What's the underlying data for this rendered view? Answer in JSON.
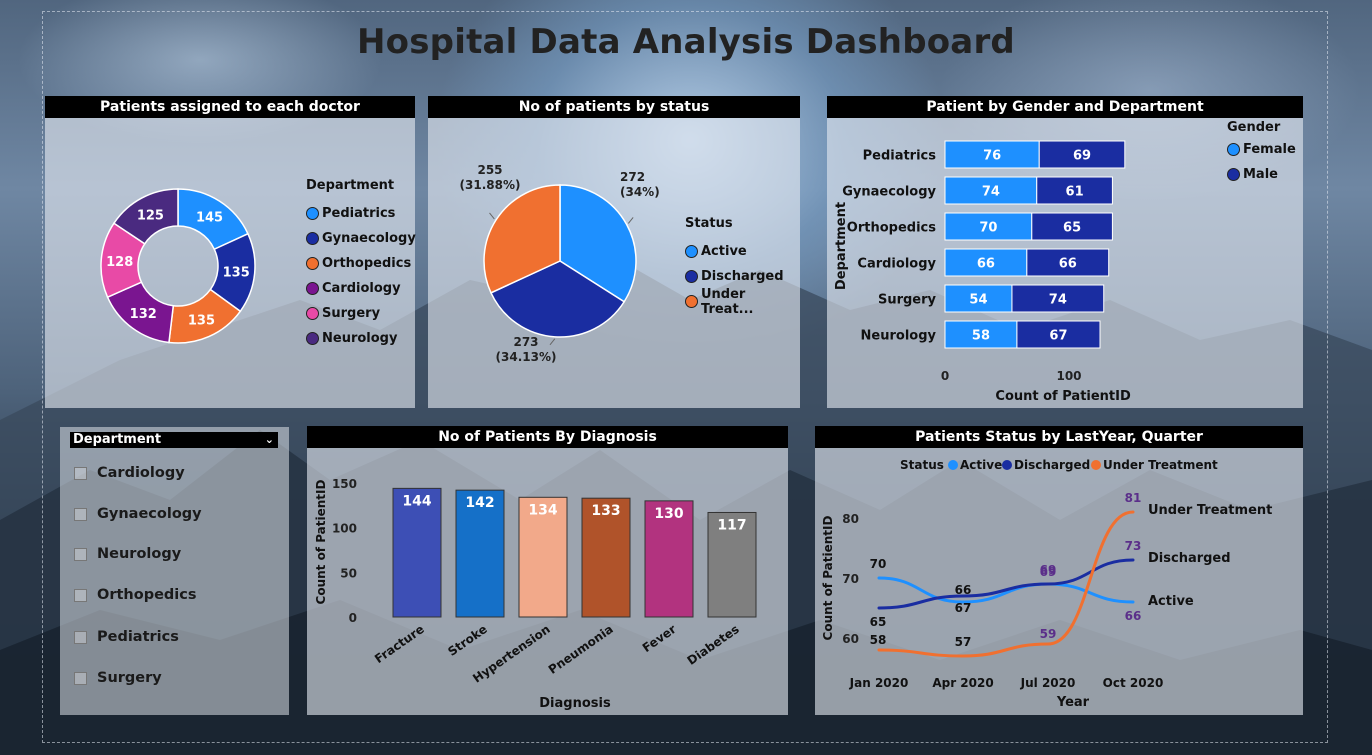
{
  "title": "Hospital Data Analysis Dashboard",
  "colors": {
    "pediatrics": "#1e90ff",
    "gynaecology": "#1a2da1",
    "orthopedics": "#f07030",
    "cardiology": "#7a1590",
    "surgery": "#e84aa6",
    "neurology": "#4a2a80",
    "active": "#1e90ff",
    "discharged": "#1a2da1",
    "under_treatment": "#f07030",
    "female": "#1e90ff",
    "male": "#1a2da1"
  },
  "doctor_panel": {
    "title": "Patients assigned to each doctor",
    "legend_title": "Department",
    "legend": [
      "Pediatrics",
      "Gynaecology",
      "Orthopedics",
      "Cardiology",
      "Surgery",
      "Neurology"
    ]
  },
  "status_panel": {
    "title": "No of patients by status",
    "legend_title": "Status",
    "legend": [
      "Active",
      "Discharged",
      "Under Treat..."
    ]
  },
  "gender_panel": {
    "title": "Patient by Gender and Department",
    "legend_title": "Gender",
    "legend": [
      "Female",
      "Male"
    ]
  },
  "slicer": {
    "title": "Department",
    "items": [
      "Cardiology",
      "Gynaecology",
      "Neurology",
      "Orthopedics",
      "Pediatrics",
      "Surgery"
    ]
  },
  "diagnosis_panel": {
    "title": "No of Patients By Diagnosis"
  },
  "trend_panel": {
    "title": "Patients Status by LastYear, Quarter"
  },
  "chart_data": [
    {
      "type": "pie",
      "variant": "donut",
      "categories": [
        "Pediatrics",
        "Gynaecology",
        "Orthopedics",
        "Cardiology",
        "Surgery",
        "Neurology"
      ],
      "values": [
        145,
        135,
        135,
        132,
        128,
        125
      ],
      "labels": [
        "145",
        "135",
        "135",
        "132",
        "128",
        "125"
      ]
    },
    {
      "type": "pie",
      "categories": [
        "Active",
        "Discharged",
        "Under Treatment"
      ],
      "values": [
        272,
        273,
        255
      ],
      "labels": [
        [
          "272",
          "(34%)"
        ],
        [
          "273",
          "(34.13%)"
        ],
        [
          "255",
          "(31.88%)"
        ]
      ]
    },
    {
      "type": "bar",
      "orientation": "horizontal",
      "stacked": true,
      "categories": [
        "Pediatrics",
        "Gynaecology",
        "Orthopedics",
        "Cardiology",
        "Surgery",
        "Neurology"
      ],
      "series": [
        {
          "name": "Female",
          "values": [
            76,
            74,
            70,
            66,
            54,
            58
          ]
        },
        {
          "name": "Male",
          "values": [
            69,
            61,
            65,
            66,
            74,
            67
          ]
        }
      ],
      "xlabel": "Count of PatientID",
      "ylabel": "Department",
      "xticks": [
        "0",
        "100"
      ],
      "xlim": [
        0,
        150
      ]
    },
    {
      "type": "bar",
      "categories": [
        "Fracture",
        "Stroke",
        "Hypertension",
        "Pneumonia",
        "Fever",
        "Diabetes"
      ],
      "values": [
        144,
        142,
        134,
        133,
        130,
        117
      ],
      "bar_colors": [
        "#3d4fb5",
        "#1570c8",
        "#f2a98a",
        "#b0532a",
        "#b2337f",
        "#7f7f7f"
      ],
      "xlabel": "Diagnosis",
      "ylabel": "Count of PatientID",
      "yticks": [
        "0",
        "50",
        "100",
        "150"
      ],
      "ylim": [
        0,
        150
      ]
    },
    {
      "type": "line",
      "x": [
        "Jan 2020",
        "Apr 2020",
        "Jul 2020",
        "Oct 2020"
      ],
      "series": [
        {
          "name": "Active",
          "values": [
            70,
            66,
            69,
            66
          ],
          "end_label": "Active"
        },
        {
          "name": "Discharged",
          "values": [
            65,
            67,
            69,
            73
          ],
          "end_label": "Discharged"
        },
        {
          "name": "Under Treatment",
          "values": [
            58,
            57,
            59,
            81
          ],
          "end_label": "Under Treatment"
        }
      ],
      "legend_title": "Status",
      "xlabel": "Year",
      "ylabel": "Count of PatientID",
      "yticks": [
        "60",
        "70",
        "80"
      ],
      "ylim": [
        55,
        84
      ]
    }
  ]
}
